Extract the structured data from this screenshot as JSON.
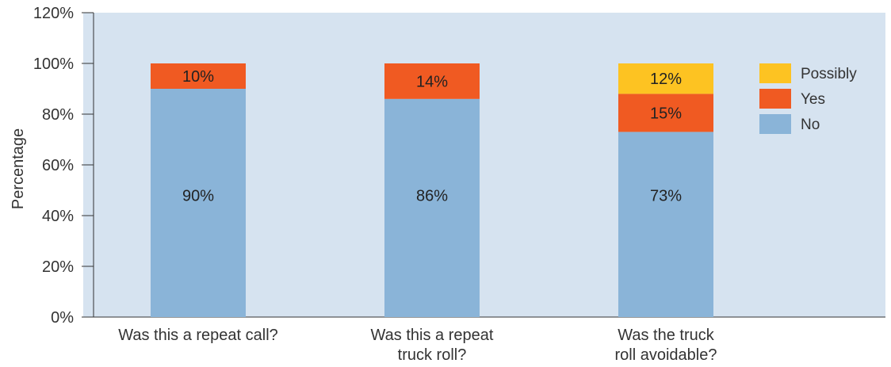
{
  "chart_data": {
    "type": "bar",
    "stacked": true,
    "title": "",
    "xlabel": "",
    "ylabel": "Percentage",
    "ylim": [
      0,
      120
    ],
    "y_ticks": [
      "0%",
      "20%",
      "40%",
      "60%",
      "80%",
      "100%",
      "120%"
    ],
    "categories": [
      [
        "Was this a repeat call?"
      ],
      [
        "Was this a repeat",
        "truck roll?"
      ],
      [
        "Was the truck",
        "roll avoidable?"
      ]
    ],
    "series": [
      {
        "name": "No",
        "color": "#8ab4d8",
        "values": [
          90,
          86,
          73
        ],
        "labels": [
          "90%",
          "86%",
          "73%"
        ]
      },
      {
        "name": "Yes",
        "color": "#f05a22",
        "values": [
          10,
          14,
          15
        ],
        "labels": [
          "10%",
          "14%",
          "15%"
        ]
      },
      {
        "name": "Possibly",
        "color": "#fdc322",
        "values": [
          0,
          0,
          12
        ],
        "labels": [
          "",
          "",
          "12%"
        ]
      }
    ],
    "legend": {
      "position": "right",
      "entries": [
        {
          "name": "Possibly",
          "color": "#fdc322"
        },
        {
          "name": "Yes",
          "color": "#f05a22"
        },
        {
          "name": "No",
          "color": "#8ab4d8"
        }
      ]
    },
    "plot_background": "#d6e3f0",
    "grid": false
  }
}
